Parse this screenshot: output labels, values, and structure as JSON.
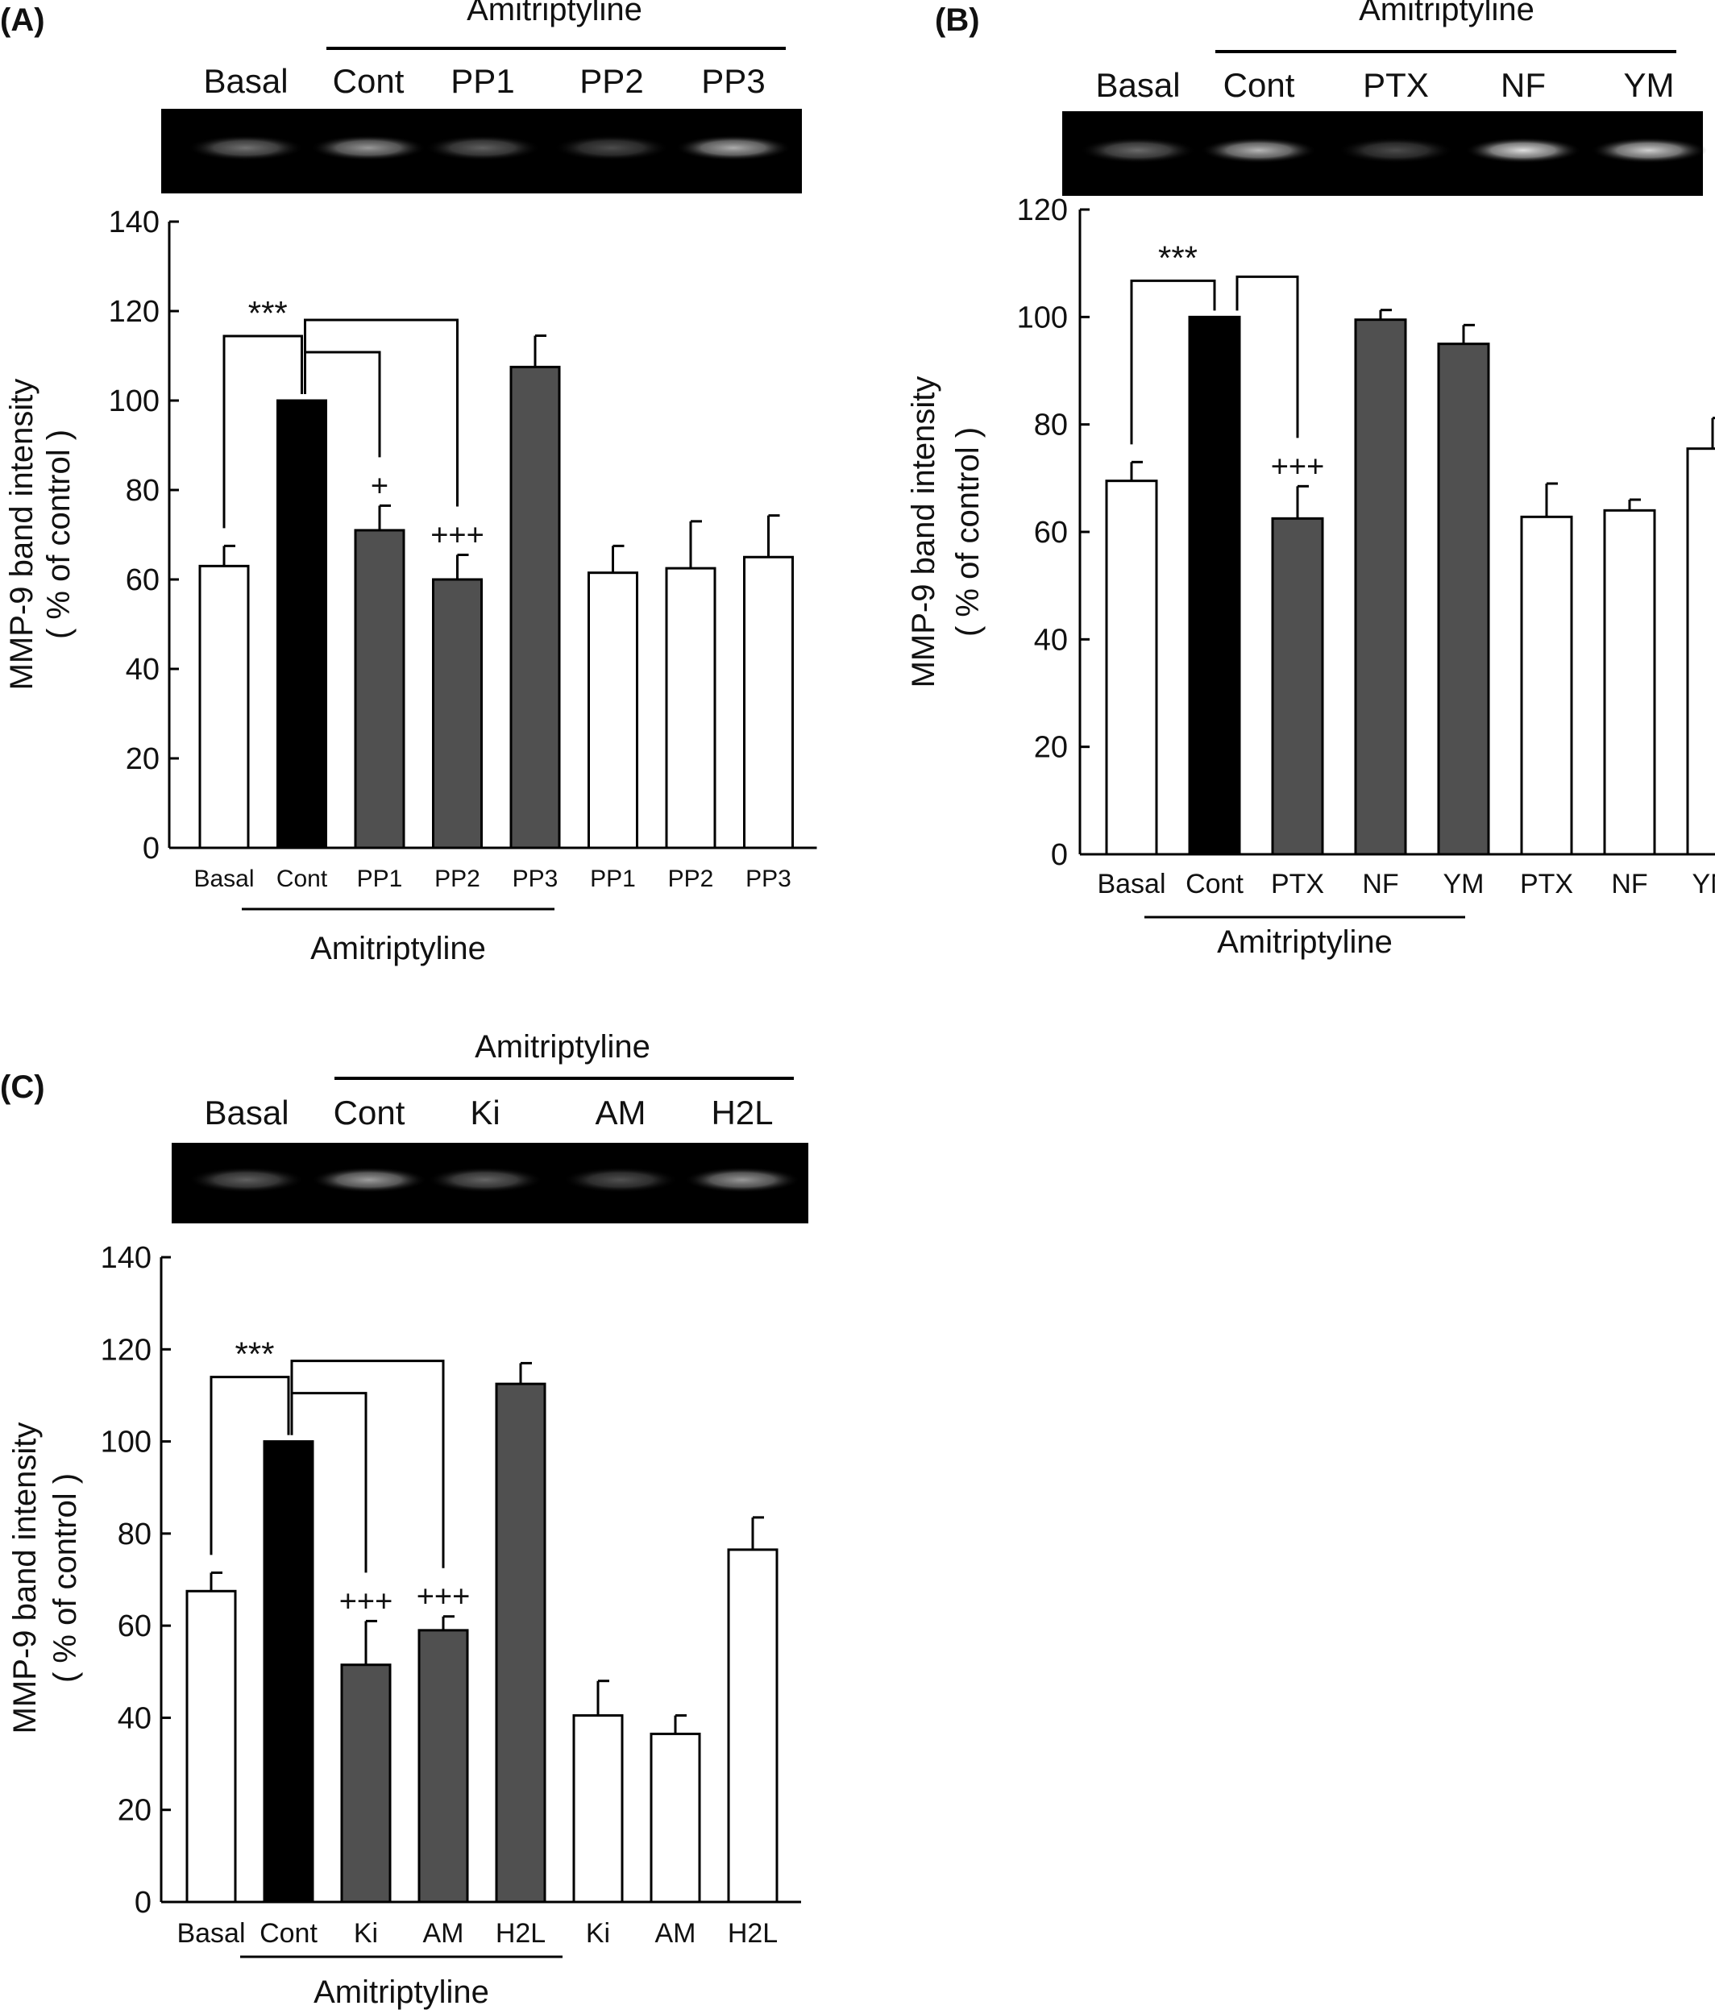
{
  "colors": {
    "basal": "#ffffff",
    "control": "#000000",
    "inhibitor": "#505050",
    "inhibitor_alone": "#ffffff",
    "gel_background": "#000000",
    "band": "#d9d9d9"
  },
  "chart_data": [
    {
      "type": "bar",
      "panel_label": "(A)",
      "gel": {
        "group_label": "Amitriptyline",
        "lanes": [
          "Basal",
          "Cont",
          "PP1",
          "PP2",
          "PP3"
        ],
        "band_intensity": [
          0.45,
          0.6,
          0.38,
          0.3,
          0.68
        ]
      },
      "ylabel": "MMP-9 band intensity",
      "ylabel2": "( % of control )",
      "ylim": [
        0,
        140
      ],
      "yticks": [
        "0",
        "20",
        "40",
        "60",
        "80",
        "100",
        "120",
        "140"
      ],
      "categories": [
        "Basal",
        "Cont",
        "PP1",
        "PP2",
        "PP3",
        "PP1",
        "PP2",
        "PP3"
      ],
      "values": [
        63,
        100,
        71,
        60,
        107.5,
        61.5,
        62.5,
        65
      ],
      "errors": [
        4.5,
        0,
        5.5,
        5.5,
        7,
        6,
        10.5,
        9.3
      ],
      "bar_colors": [
        "basal",
        "control",
        "inhibitor",
        "inhibitor",
        "inhibitor",
        "inhibitor_alone",
        "inhibitor_alone",
        "inhibitor_alone"
      ],
      "group_label": "Amitriptyline",
      "significance": {
        "basal_vs_control": "***",
        "marks": [
          {
            "bar": 2,
            "text": "+"
          },
          {
            "bar": 3,
            "text": "+++"
          }
        ]
      }
    },
    {
      "type": "bar",
      "panel_label": "(B)",
      "gel": {
        "group_label": "Amitriptyline",
        "lanes": [
          "Basal",
          "Cont",
          "PTX",
          "NF",
          "YM"
        ],
        "band_intensity": [
          0.42,
          0.72,
          0.3,
          0.88,
          0.82
        ]
      },
      "ylabel": "MMP-9 band intensity",
      "ylabel2": "( % of control )",
      "ylim": [
        0,
        120
      ],
      "yticks": [
        "0",
        "20",
        "40",
        "60",
        "80",
        "100",
        "120"
      ],
      "categories": [
        "Basal",
        "Cont",
        "PTX",
        "NF",
        "YM",
        "PTX",
        "NF",
        "YM"
      ],
      "values": [
        69.5,
        100,
        62.5,
        99.5,
        95,
        62.8,
        64,
        75.5
      ],
      "errors": [
        3.5,
        0,
        6,
        1.8,
        3.5,
        6.2,
        2,
        5.7
      ],
      "bar_colors": [
        "basal",
        "control",
        "inhibitor",
        "inhibitor",
        "inhibitor",
        "inhibitor_alone",
        "inhibitor_alone",
        "inhibitor_alone"
      ],
      "group_label": "Amitriptyline",
      "significance": {
        "basal_vs_control": "***",
        "marks": [
          {
            "bar": 2,
            "text": "+++"
          }
        ]
      }
    },
    {
      "type": "bar",
      "panel_label": "(C)",
      "gel": {
        "group_label": "Amitriptyline",
        "lanes": [
          "Basal",
          "Cont",
          "Ki",
          "AM",
          "H2L"
        ],
        "band_intensity": [
          0.38,
          0.62,
          0.4,
          0.32,
          0.6
        ]
      },
      "ylabel": "MMP-9 band intensity",
      "ylabel2": "( % of control )",
      "ylim": [
        0,
        140
      ],
      "yticks": [
        "0",
        "20",
        "40",
        "60",
        "80",
        "100",
        "120",
        "140"
      ],
      "categories": [
        "Basal",
        "Cont",
        "Ki",
        "AM",
        "H2L",
        "Ki",
        "AM",
        "H2L"
      ],
      "values": [
        67.5,
        100,
        51.5,
        59,
        112.5,
        40.5,
        36.5,
        76.5
      ],
      "errors": [
        4,
        0,
        9.5,
        3,
        4.5,
        7.5,
        4,
        7
      ],
      "bar_colors": [
        "basal",
        "control",
        "inhibitor",
        "inhibitor",
        "inhibitor",
        "inhibitor_alone",
        "inhibitor_alone",
        "inhibitor_alone"
      ],
      "group_label": "Amitriptyline",
      "significance": {
        "basal_vs_control": "***",
        "marks": [
          {
            "bar": 2,
            "text": "+++"
          },
          {
            "bar": 3,
            "text": "+++"
          }
        ]
      }
    }
  ]
}
